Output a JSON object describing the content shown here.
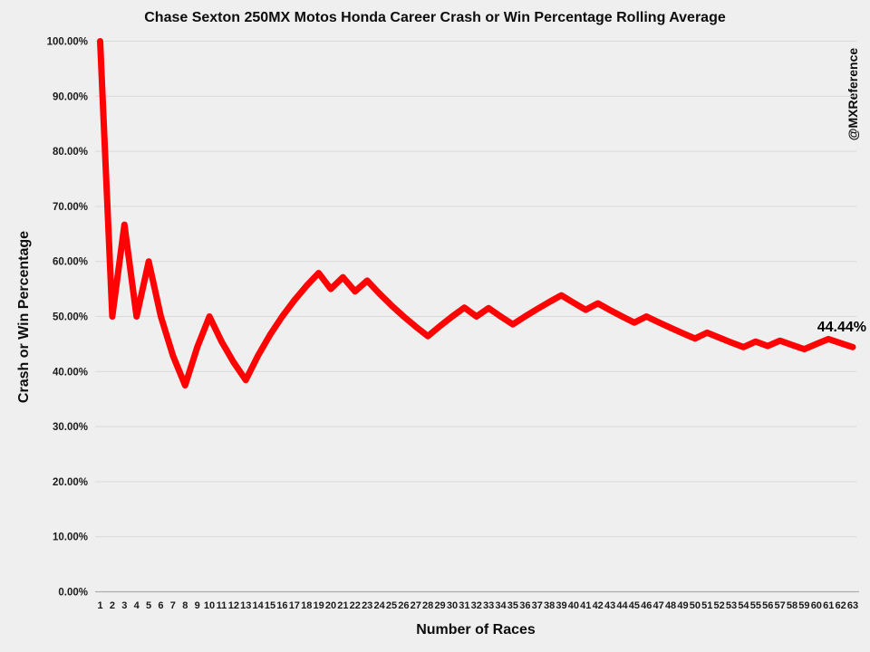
{
  "chart": {
    "title": "Chase Sexton 250MX Motos Honda Career Crash or Win Percentage Rolling Average",
    "watermark": "@MXReference",
    "end_label": "44.44%"
  },
  "chart_data": {
    "type": "line",
    "title": "Chase Sexton 250MX Motos Honda Career Crash or Win Percentage Rolling Average",
    "xlabel": "Number of Races",
    "ylabel": "Crash or Win Percentage",
    "legend": "none",
    "grid": true,
    "ylim": [
      0,
      100
    ],
    "y_tick_labels": [
      "0.00%",
      "10.00%",
      "20.00%",
      "30.00%",
      "40.00%",
      "50.00%",
      "60.00%",
      "70.00%",
      "80.00%",
      "90.00%",
      "100.00%"
    ],
    "x": [
      1,
      2,
      3,
      4,
      5,
      6,
      7,
      8,
      9,
      10,
      11,
      12,
      13,
      14,
      15,
      16,
      17,
      18,
      19,
      20,
      21,
      22,
      23,
      24,
      25,
      26,
      27,
      28,
      29,
      30,
      31,
      32,
      33,
      34,
      35,
      36,
      37,
      38,
      39,
      40,
      41,
      42,
      43,
      44,
      45,
      46,
      47,
      48,
      49,
      50,
      51,
      52,
      53,
      54,
      55,
      56,
      57,
      58,
      59,
      60,
      61,
      62,
      63
    ],
    "values": [
      100.0,
      50.0,
      66.67,
      50.0,
      60.0,
      50.0,
      42.86,
      37.5,
      44.44,
      50.0,
      45.45,
      41.67,
      38.46,
      42.86,
      46.67,
      50.0,
      52.94,
      55.56,
      57.89,
      55.0,
      57.14,
      54.55,
      56.52,
      54.17,
      52.0,
      50.0,
      48.15,
      46.43,
      48.28,
      50.0,
      51.61,
      50.0,
      51.52,
      50.0,
      48.57,
      50.0,
      51.35,
      52.63,
      53.85,
      52.5,
      51.22,
      52.38,
      51.16,
      50.0,
      48.89,
      50.0,
      48.94,
      47.92,
      46.94,
      46.0,
      47.06,
      46.15,
      45.28,
      44.44,
      45.45,
      44.64,
      45.61,
      44.83,
      44.07,
      45.0,
      45.9,
      45.16,
      44.44
    ],
    "end_label": "44.44%",
    "line_color": "#fd0303",
    "background_color": "#f0efef",
    "gridline_color": "#d9d9d9",
    "axis_color": "#adadad"
  }
}
